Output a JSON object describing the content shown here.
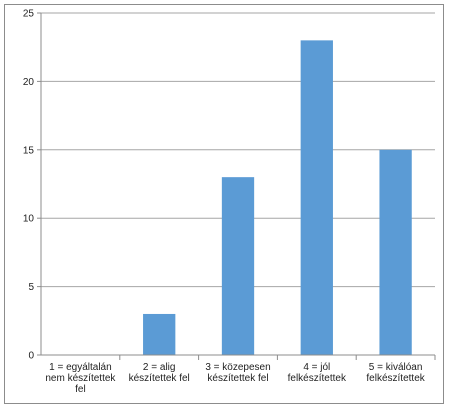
{
  "chart_data": {
    "type": "bar",
    "categories": [
      [
        "1 = egyáltalán",
        "nem készítettek",
        "fel"
      ],
      [
        "2 = alig",
        "készítettek fel"
      ],
      [
        "3 = közepesen",
        "készítettek fel"
      ],
      [
        "4 = jól",
        "felkészítettek"
      ],
      [
        "5 = kiválóan",
        "felkészítettek"
      ]
    ],
    "values": [
      0,
      3,
      13,
      23,
      15
    ],
    "ylim": [
      0,
      25
    ],
    "yticks": [
      0,
      5,
      10,
      15,
      20,
      25
    ],
    "grid": true,
    "legend": "none",
    "colors": {
      "bar": "#5b9bd5",
      "grid": "#a6a6a6",
      "axis": "#8c8c8c"
    }
  }
}
